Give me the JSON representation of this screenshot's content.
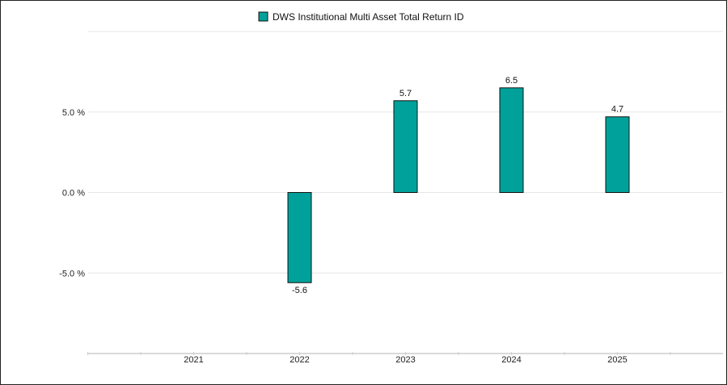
{
  "chart_data": {
    "type": "bar",
    "categories": [
      "2021",
      "2022",
      "2023",
      "2024",
      "2025"
    ],
    "series": [
      {
        "name": "DWS Institutional Multi Asset Total Return ID",
        "values": [
          null,
          -5.6,
          5.7,
          6.5,
          4.7
        ],
        "labels": [
          "",
          "-5.6",
          "5.7",
          "6.5",
          "4.7"
        ],
        "color": "#00A19A"
      }
    ],
    "title": "",
    "xlabel": "",
    "ylabel": "",
    "ylim": [
      -10,
      10
    ],
    "yticks": [
      {
        "value": 5,
        "label": "5.0 %"
      },
      {
        "value": 0,
        "label": "0.0 %"
      },
      {
        "value": -5,
        "label": "-5.0 %"
      }
    ],
    "grid": true,
    "legend_position": "top-center",
    "bar_outline_color": "#111111",
    "grid_color": "#e6e6e6"
  }
}
